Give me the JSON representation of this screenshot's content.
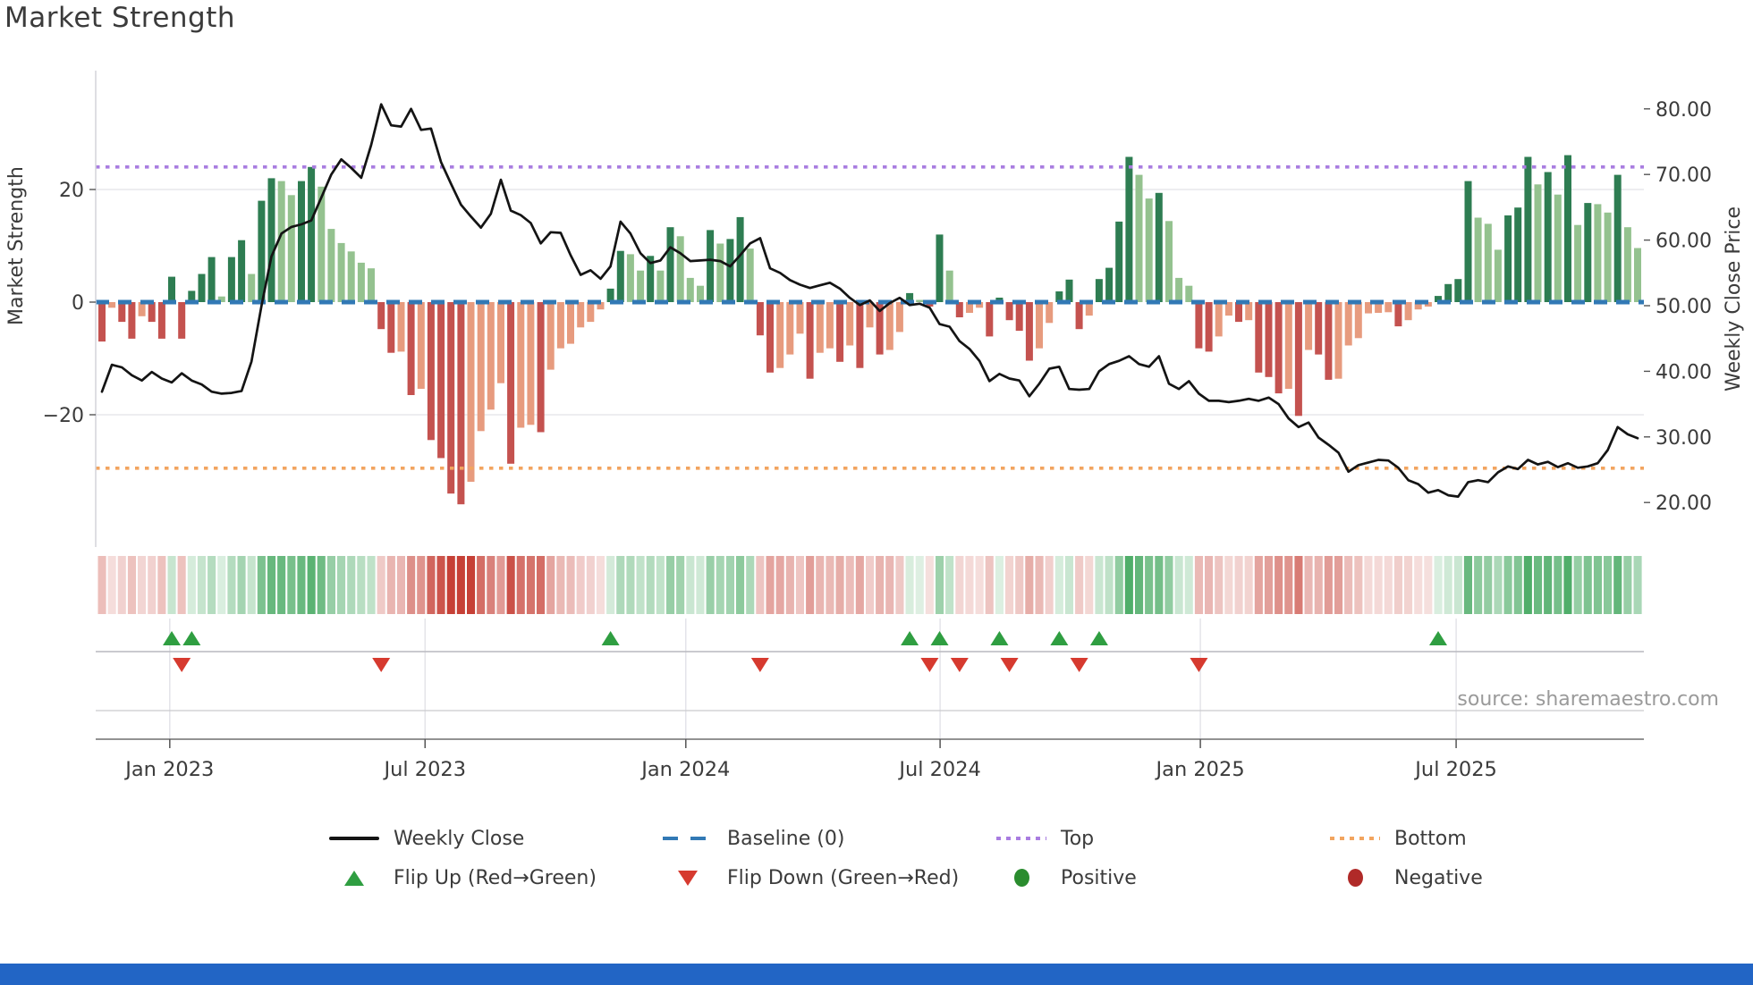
{
  "page": {
    "title": "Market Strength",
    "source": "source: sharemaestro.com"
  },
  "chart_data": {
    "type": "combo",
    "title": "Market Strength",
    "ylabel_left": "Market Strength",
    "ylabel_right": "Weekly Close Price",
    "x_tick_labels": [
      "Jan 2023",
      "Jul 2023",
      "Jan 2024",
      "Jul 2024",
      "Jan 2025",
      "Jul 2025"
    ],
    "x_tick_week_index": [
      6.8,
      32.4,
      58.55,
      84.05,
      110.15,
      135.8
    ],
    "left_ticks": [
      20,
      0,
      -20
    ],
    "right_ticks": [
      80,
      70,
      60,
      50,
      40,
      30,
      20
    ],
    "left_ylim": [
      -44,
      44
    ],
    "right_ylim": [
      13,
      88
    ],
    "grid": "horizontal-only",
    "baseline": 0,
    "top_line": 24,
    "bottom_line": -29.5,
    "weeks": 155,
    "series": [
      {
        "name": "Market Strength (weekly bars)",
        "type": "bar",
        "values": [
          -7,
          -1,
          -3.5,
          -6.5,
          -2.5,
          -3.5,
          -6.5,
          4.5,
          -6.5,
          2,
          5,
          8,
          1,
          8,
          11,
          5,
          18,
          22,
          21.5,
          19,
          21.5,
          24,
          20.5,
          13,
          10.5,
          9,
          7,
          6,
          -4.8,
          -9,
          -8.8,
          -16.5,
          -15.4,
          -24.5,
          -27.7,
          -34,
          -35.9,
          -31.9,
          -22.9,
          -19.1,
          -14.4,
          -28.7,
          -22.3,
          -21.8,
          -23.1,
          -12,
          -8.2,
          -7.4,
          -4.5,
          -3.5,
          -1.3,
          2.4,
          9.1,
          8.5,
          5.6,
          8.2,
          5.6,
          13.3,
          11.7,
          4.3,
          2.9,
          12.8,
          10.4,
          11.2,
          15.1,
          9.5,
          -5.9,
          -12.5,
          -11.7,
          -9.3,
          -5.6,
          -13.6,
          -9,
          -8.2,
          -10.6,
          -7.7,
          -11.7,
          -4.5,
          -9.3,
          -8.5,
          -5.3,
          1.6,
          0.4,
          -0.8,
          12,
          5.6,
          -2.7,
          -1.9,
          -1,
          -6.1,
          0.8,
          -3.2,
          -5.1,
          -10.4,
          -8.2,
          -3.7,
          1.9,
          4,
          -4.8,
          -2.4,
          4.1,
          6.1,
          14.3,
          25.8,
          22.6,
          18.4,
          19.4,
          14.4,
          4.3,
          2.9,
          -8.2,
          -8.8,
          -6.1,
          -2.4,
          -3.5,
          -3.2,
          -12.5,
          -13.3,
          -16.2,
          -15.4,
          -20.2,
          -8.5,
          -9.3,
          -13.8,
          -13.6,
          -7.7,
          -6.4,
          -2,
          -1.9,
          -1.8,
          -4.3,
          -3.2,
          -1.3,
          -0.8,
          1.1,
          3.2,
          4.1,
          21.5,
          15,
          13.9,
          9.3,
          15.4,
          16.8,
          25.8,
          20.9,
          23.1,
          19.1,
          26.1,
          13.7,
          17.6,
          17.4,
          15.9,
          22.6,
          13.3,
          9.6
        ]
      },
      {
        "name": "Weekly Close",
        "type": "line",
        "values": [
          36.9,
          41,
          40.6,
          39.4,
          38.6,
          39.9,
          38.9,
          38.3,
          39.7,
          38.6,
          38,
          36.9,
          36.6,
          36.7,
          37,
          41.5,
          50,
          57.5,
          61,
          62,
          62.4,
          63,
          66.5,
          70,
          72.3,
          71,
          69.5,
          74.5,
          80.7,
          77.5,
          77.3,
          80,
          76.8,
          77,
          71.9,
          68.6,
          65.4,
          63.6,
          61.9,
          64,
          69.2,
          64.5,
          63.8,
          62.6,
          59.5,
          61.2,
          61.1,
          57.7,
          54.7,
          55.4,
          54.1,
          56,
          62.8,
          61,
          58,
          56.5,
          56.9,
          58.9,
          58,
          56.8,
          56.9,
          57,
          56.8,
          56,
          57.7,
          59.5,
          60.3,
          55.7,
          55,
          53.9,
          53.2,
          52.7,
          53.1,
          53.5,
          52.6,
          51.2,
          50.1,
          50.8,
          49.2,
          50.4,
          51.2,
          50.1,
          50.3,
          49.7,
          47.2,
          46.8,
          44.6,
          43.4,
          41.6,
          38.5,
          39.6,
          38.9,
          38.6,
          36.2,
          38.1,
          40.4,
          40.7,
          37.3,
          37.2,
          37.3,
          40,
          41.1,
          41.6,
          42.3,
          41.1,
          40.7,
          42.3,
          38.1,
          37.3,
          38.5,
          36.6,
          35.5,
          35.5,
          35.3,
          35.5,
          35.8,
          35.5,
          36,
          35,
          32.8,
          31.5,
          32.2,
          29.9,
          28.8,
          27.6,
          24.7,
          25.7,
          26.1,
          26.5,
          26.4,
          25.3,
          23.4,
          22.8,
          21.5,
          21.9,
          21.1,
          20.9,
          23.1,
          23.4,
          23.1,
          24.6,
          25.5,
          25.1,
          26.5,
          25.8,
          26.2,
          25.4,
          26,
          25.3,
          25.5,
          26,
          28,
          31.5,
          30.4,
          29.8
        ]
      }
    ],
    "flip_up_weeks": [
      7,
      9,
      51,
      81,
      84,
      90,
      96,
      100,
      134
    ],
    "flip_down_weeks": [
      8,
      28,
      66,
      83,
      86,
      91,
      98,
      110
    ],
    "heatmap": "mirror of bar values as red-green color intensity strip",
    "colors": {
      "bar_green_strong": "#2e7d52",
      "bar_green_soft": "#94c28f",
      "bar_red_strong": "#c4524f",
      "bar_red_soft": "#e79b7e",
      "baseline_blue": "#3279b5",
      "top_purple": "#a97de0",
      "bottom_orange": "#f2a45f",
      "line_black": "#141414",
      "flip_up_green": "#2f9e41",
      "flip_down_red": "#d63a2f",
      "positive_green": "#2a8c2e",
      "negative_red": "#b02a28",
      "heat_green": "47,158,77",
      "heat_red": "198,64,54",
      "footer_blue": "#2265c5"
    }
  },
  "legend": {
    "rows": [
      [
        {
          "icon": "line-swatch",
          "label": "Weekly Close"
        },
        {
          "icon": "blue-dash-swatch",
          "label": "Baseline (0)"
        },
        {
          "icon": "purple-dot-swatch",
          "label": "Top"
        },
        {
          "icon": "orange-dot-swatch",
          "label": "Bottom"
        }
      ],
      [
        {
          "icon": "green-up-triangle",
          "label": "Flip Up (Red→Green)"
        },
        {
          "icon": "red-down-triangle",
          "label": "Flip Down (Green→Red)"
        },
        {
          "icon": "green-circle",
          "label": "Positive"
        },
        {
          "icon": "red-circle",
          "label": "Negative"
        }
      ]
    ]
  }
}
